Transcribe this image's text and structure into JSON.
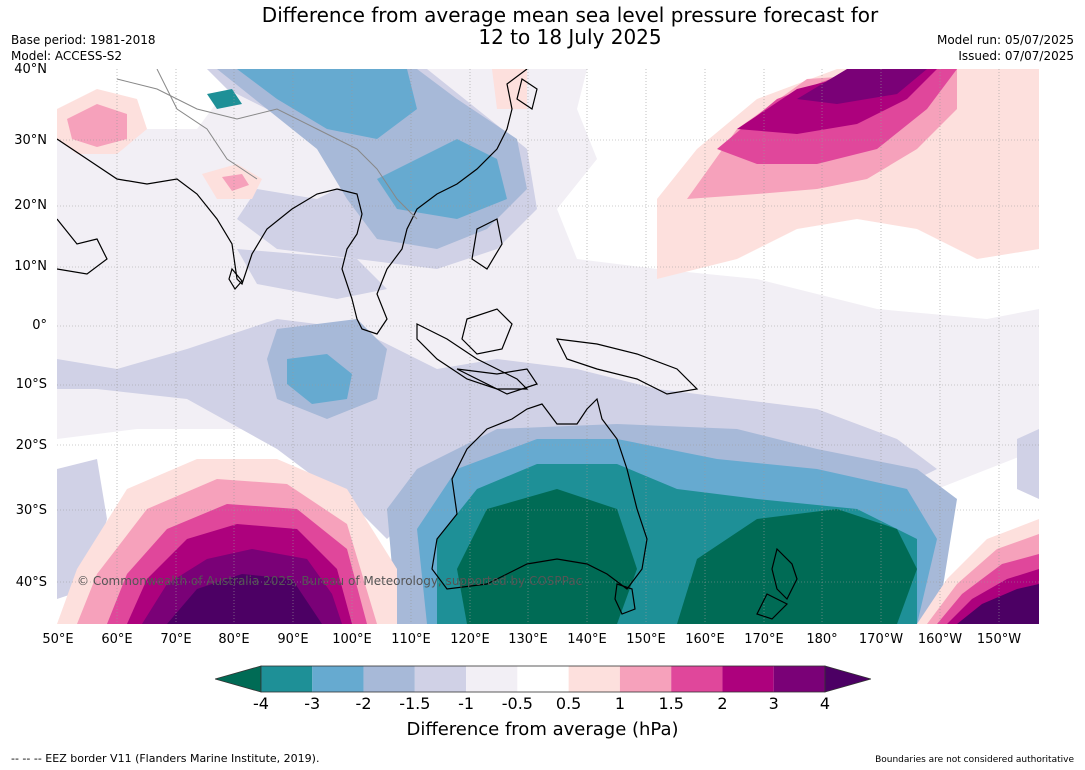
{
  "title": {
    "line1": "Difference from average mean sea level pressure forecast for",
    "line2": "12 to 18 July 2025"
  },
  "meta": {
    "base_period": "Base period: 1981-2018",
    "model": "Model: ACCESS-S2",
    "model_run": "Model run: 05/07/2025",
    "issued": "Issued: 07/07/2025"
  },
  "lat_labels": [
    "40°N",
    "30°N",
    "20°N",
    "10°N",
    "0°",
    "10°S",
    "20°S",
    "30°S",
    "40°S"
  ],
  "lon_labels": [
    "50°E",
    "60°E",
    "70°E",
    "80°E",
    "90°E",
    "100°E",
    "110°E",
    "120°E",
    "130°E",
    "140°E",
    "150°E",
    "160°E",
    "170°E",
    "180°",
    "170°W",
    "160°W",
    "150°W"
  ],
  "copyright": "© Commonwealth of Australia 2025, Bureau of Meteorology, supported by COSPPac",
  "colorbar": {
    "title": "Difference from average (hPa)",
    "ticks": [
      "-4",
      "-3",
      "-2",
      "-1.5",
      "-1",
      "-0.5",
      "0.5",
      "1",
      "1.5",
      "2",
      "3",
      "4"
    ],
    "colors": [
      "#006b55",
      "#1e9097",
      "#66aad0",
      "#a7b9d8",
      "#d0d1e6",
      "#f2eff5",
      "#ffffff",
      "#fde0dd",
      "#f6a1bb",
      "#e0479b",
      "#ad017d",
      "#7a0177",
      "#4c0064"
    ]
  },
  "footer": {
    "eez": "--  --  -- EEZ border V11 (Flanders Marine Institute, 2019).",
    "boundaries": "Boundaries are not considered authoritative"
  }
}
